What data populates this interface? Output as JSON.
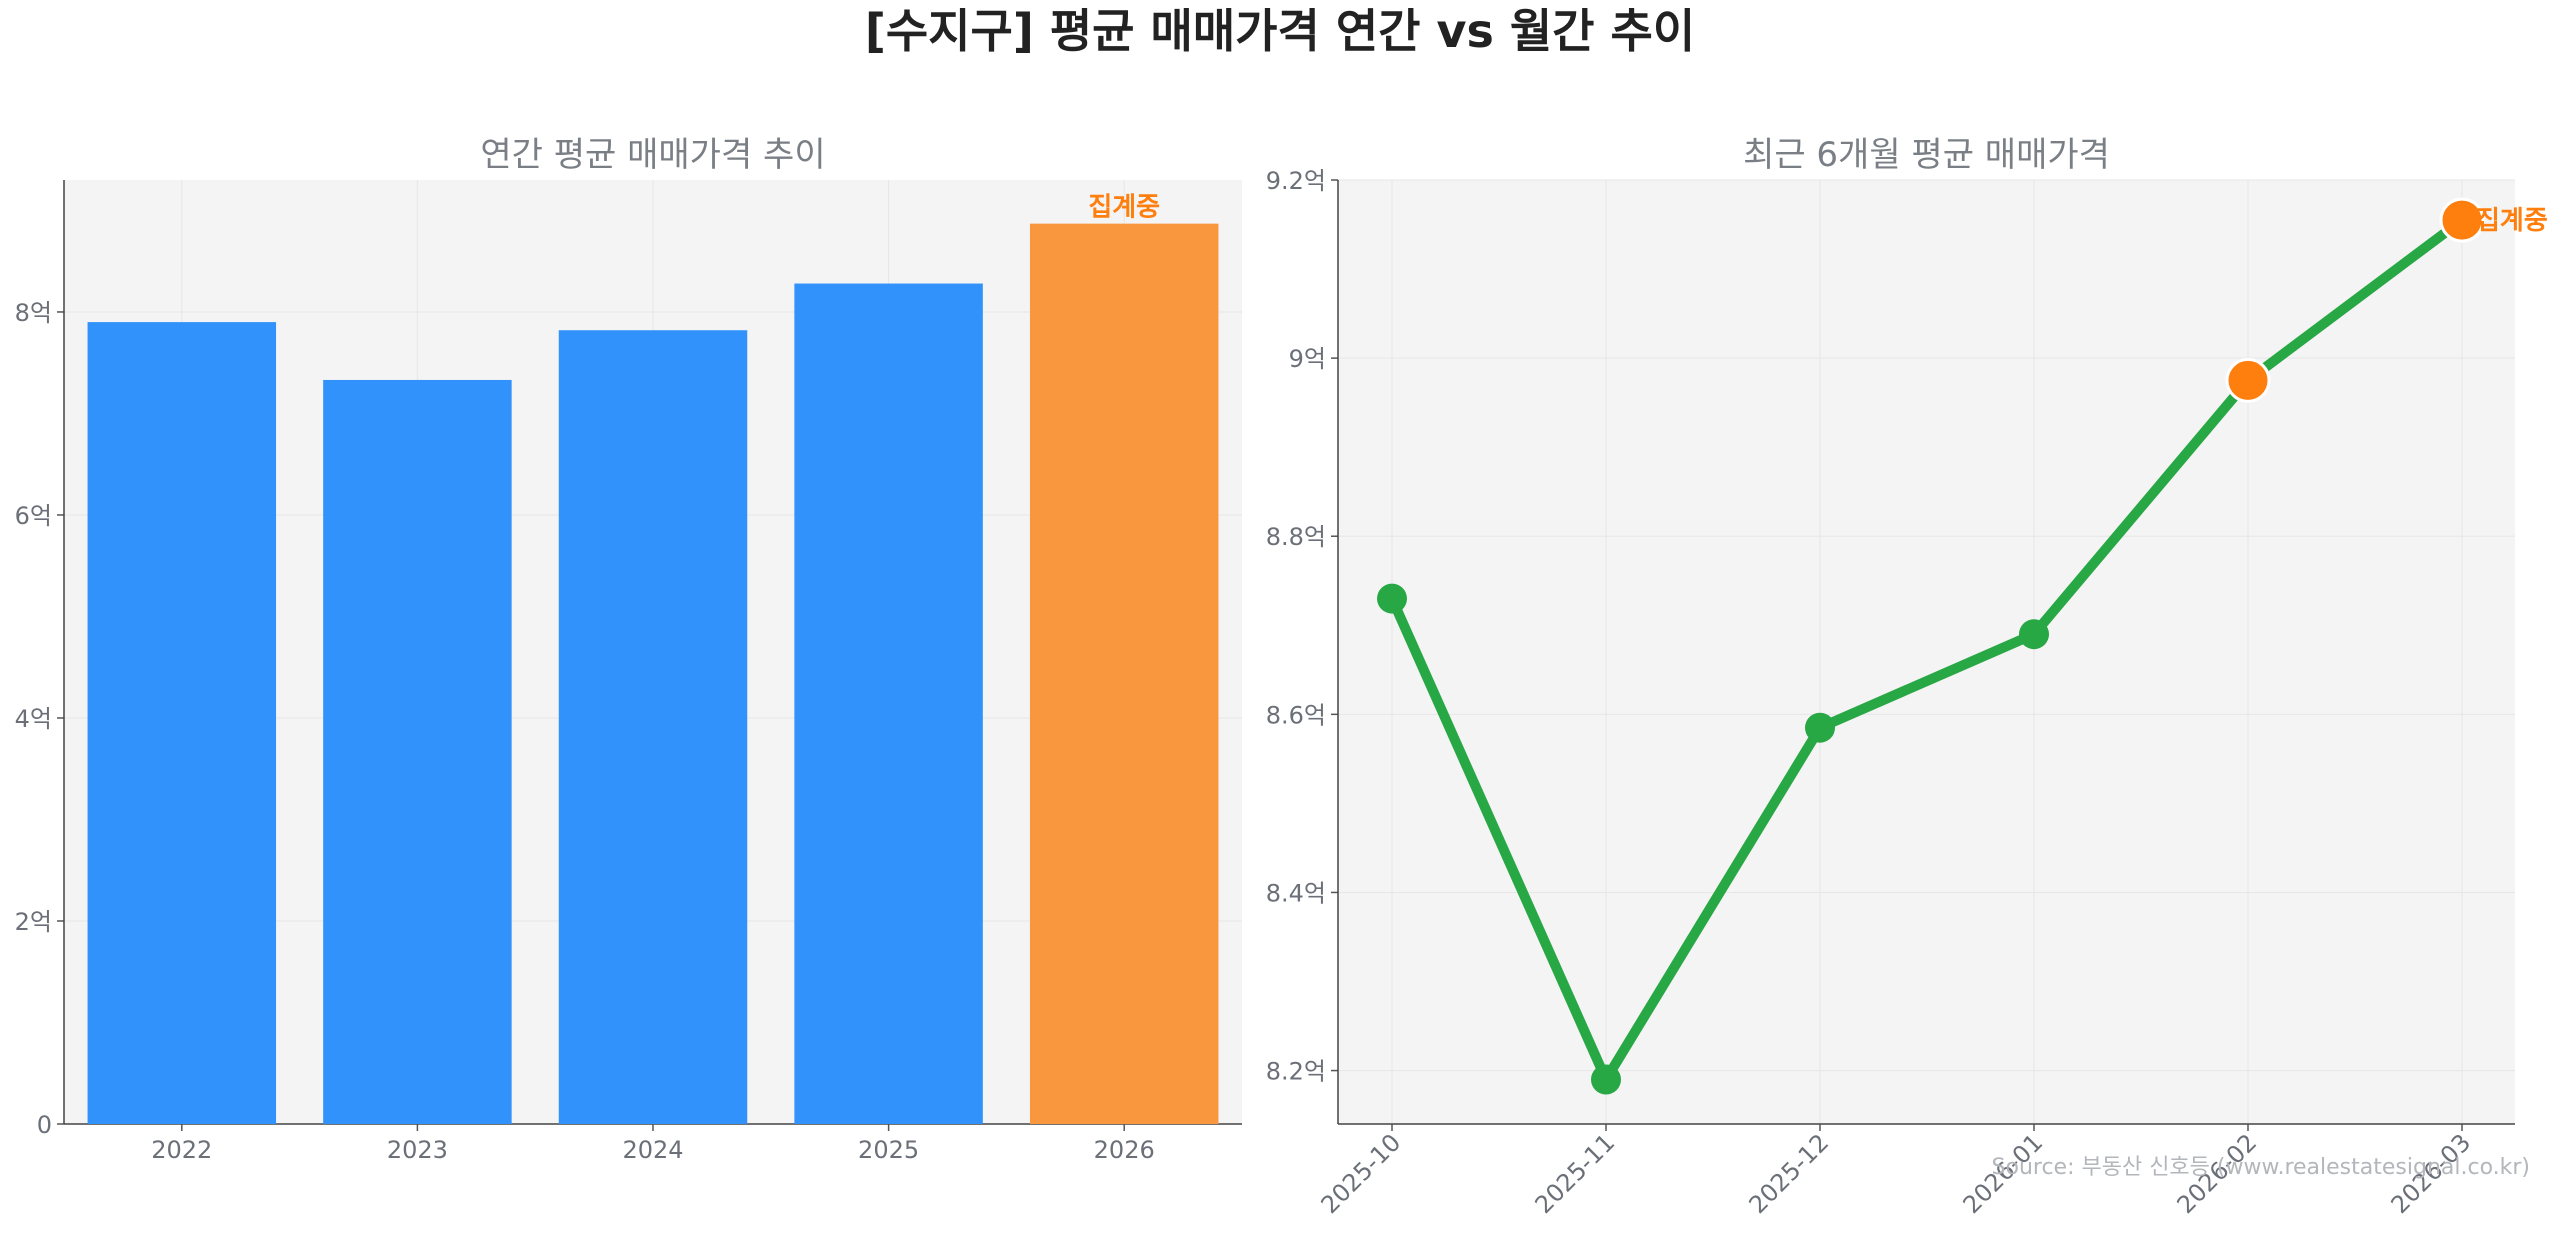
{
  "title": "[수지구] 평균 매매가격 연간 vs 월간 추이",
  "source": "Source: 부동산 신호등 (www.realestatesignal.co.kr)",
  "chart_data": [
    {
      "type": "bar",
      "title": "연간 평균 매매가격 추이",
      "categories": [
        "2022",
        "2023",
        "2024",
        "2025",
        "2026"
      ],
      "values": [
        7.9,
        7.33,
        7.82,
        8.28,
        8.87
      ],
      "ylim": [
        0,
        9.3
      ],
      "yticks": [
        0,
        2,
        4,
        6,
        8
      ],
      "ytick_labels": [
        "0",
        "2억",
        "4억",
        "6억",
        "8억"
      ],
      "colors": [
        "#3292fb",
        "#3292fb",
        "#3292fb",
        "#3292fb",
        "#f9973f"
      ],
      "annotation": {
        "category": "2026",
        "text": "집계중",
        "color": "#ff7f0e"
      },
      "grid": true
    },
    {
      "type": "line",
      "title": "최근 6개월 평균 매매가격",
      "x": [
        "2025-10",
        "2025-11",
        "2025-12",
        "2026-01",
        "2026-02",
        "2026-03"
      ],
      "values": [
        8.73,
        8.19,
        8.585,
        8.69,
        8.975,
        9.155
      ],
      "ylim": [
        8.14,
        9.2
      ],
      "yticks": [
        8.2,
        8.4,
        8.6,
        8.8,
        9.0,
        9.2
      ],
      "ytick_labels": [
        "8.2억",
        "8.4억",
        "8.6억",
        "8.8억",
        "9억",
        "9.2억"
      ],
      "line_color": "#28a745",
      "highlight_color": "#ff7f0e",
      "highlight_points": [
        "2026-02",
        "2026-03"
      ],
      "annotation": {
        "x": "2026-03",
        "text": "집계중",
        "color": "#ff7f0e"
      },
      "grid": true
    }
  ]
}
